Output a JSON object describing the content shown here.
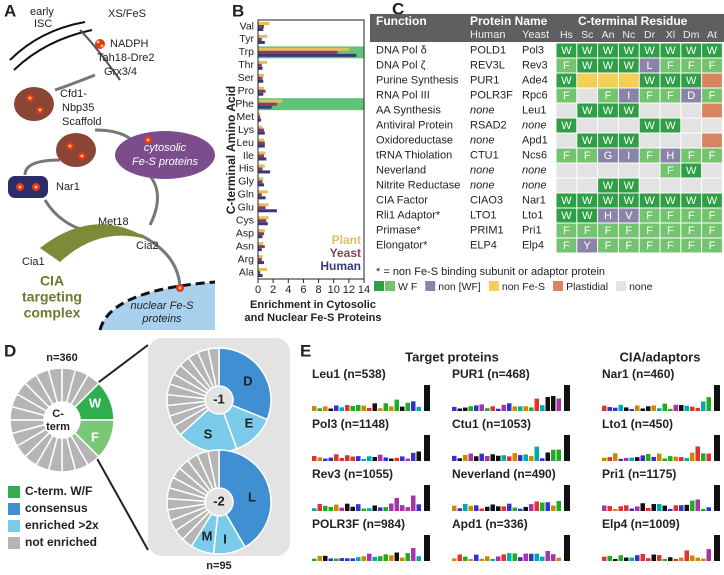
{
  "panel_labels": [
    "A",
    "B",
    "C",
    "D",
    "E"
  ],
  "diagram_a": {
    "early_isc": [
      "early",
      "ISC"
    ],
    "xs_fes": "XS/FeS",
    "nadph": "NADPH",
    "tah18": "Tah18-Dre2",
    "grx": "Grx3/4",
    "scaffold": [
      "Cfd1-",
      "Nbp35",
      "Scaffold"
    ],
    "nar1": "Nar1",
    "met18": "Met18",
    "cytosolic": [
      "cytosolic",
      "Fe-S proteins"
    ],
    "cia1": "Cia1",
    "cia2": "Cia2",
    "cia_complex": [
      "CIA",
      "targeting",
      "complex"
    ],
    "nuclear": [
      "nuclear Fe-S",
      "proteins"
    ]
  },
  "chart_data": {
    "type": "hbar",
    "ylabel": "C-terminal Amino Acid",
    "xlabel": [
      "Enrichment in Cytosolic",
      "and Nuclear Fe-S Proteins"
    ],
    "categories": [
      "Val",
      "Tyr",
      "Trp",
      "Thr",
      "Ser",
      "Pro",
      "Phe",
      "Met",
      "Lys",
      "Leu",
      "Ile",
      "His",
      "Gly",
      "Gln",
      "Glu",
      "Cys",
      "Asp",
      "Asn",
      "Arg",
      "Ala"
    ],
    "series": [
      {
        "name": "Plant",
        "color": "#e3bd63",
        "values": [
          1.5,
          1.2,
          12,
          1.2,
          0.8,
          0.8,
          3.2,
          0.3,
          0.6,
          0.8,
          1.0,
          0.9,
          0.7,
          1.3,
          1.4,
          1.4,
          0.9,
          0.7,
          0.6,
          1.2
        ]
      },
      {
        "name": "Yeast",
        "color": "#8a3f55",
        "values": [
          0.8,
          0.5,
          10.5,
          0.5,
          0.6,
          1.0,
          2.5,
          0.3,
          0.8,
          0.9,
          0.8,
          0.6,
          0.6,
          0.5,
          1.0,
          1.1,
          0.8,
          0.9,
          0.5,
          0.3
        ]
      },
      {
        "name": "Human",
        "color": "#39397a",
        "values": [
          0.7,
          0.9,
          13,
          0.6,
          0.7,
          0.7,
          1.8,
          0.4,
          0.9,
          0.9,
          1.1,
          1.6,
          0.8,
          1.0,
          2.5,
          1.3,
          0.6,
          0.5,
          0.8,
          0.6
        ]
      }
    ],
    "highlight": [
      "Trp",
      "Phe"
    ],
    "highlight_color": "#2fae4e",
    "xlim": [
      0,
      14
    ],
    "xticks": [
      0,
      2,
      4,
      6,
      8,
      10,
      12,
      14
    ],
    "legend": "lower right"
  },
  "table_c": {
    "header": {
      "function": "Function",
      "protein_name": "Protein Name",
      "c_terminal": "C-terminal Residue",
      "human": "Human",
      "yeast": "Yeast",
      "species": [
        "Hs",
        "Sc",
        "An",
        "Nc",
        "Dr",
        "Xl",
        "Dm",
        "At"
      ]
    },
    "class_colors": {
      "w": "#2f9f46",
      "f": "#74c36f",
      "nonwf": "#8a84a8",
      "nonfes": "#f3cf55",
      "plastidial": "#d98461",
      "none": "#e3e3e3"
    },
    "rows": [
      {
        "function": "DNA Pol δ",
        "human": "POLD1",
        "yeast": "Pol3",
        "cells": [
          {
            "residue": "W",
            "class": "w"
          },
          {
            "residue": "W",
            "class": "w"
          },
          {
            "residue": "W",
            "class": "w"
          },
          {
            "residue": "W",
            "class": "w"
          },
          {
            "residue": "W",
            "class": "w"
          },
          {
            "residue": "W",
            "class": "w"
          },
          {
            "residue": "W",
            "class": "w"
          },
          {
            "residue": "W",
            "class": "w"
          }
        ]
      },
      {
        "function": "DNA Pol ζ",
        "human": "REV3L",
        "yeast": "Rev3",
        "cells": [
          {
            "residue": "F",
            "class": "f"
          },
          {
            "residue": "W",
            "class": "w"
          },
          {
            "residue": "W",
            "class": "w"
          },
          {
            "residue": "W",
            "class": "w"
          },
          {
            "residue": "L",
            "class": "nonwf"
          },
          {
            "residue": "F",
            "class": "f"
          },
          {
            "residue": "F",
            "class": "f"
          },
          {
            "residue": "F",
            "class": "f"
          }
        ]
      },
      {
        "function": "Purine Synthesis",
        "human": "PUR1",
        "yeast": "Ade4",
        "cells": [
          {
            "residue": "W",
            "class": "w"
          },
          {
            "residue": null,
            "class": "nonfes"
          },
          {
            "residue": null,
            "class": "nonfes"
          },
          {
            "residue": null,
            "class": "nonfes"
          },
          {
            "residue": "W",
            "class": "w"
          },
          {
            "residue": "W",
            "class": "w"
          },
          {
            "residue": "W",
            "class": "w"
          },
          {
            "residue": null,
            "class": "plastidial"
          }
        ]
      },
      {
        "function": "RNA Pol III",
        "human": "POLR3F",
        "yeast": "Rpc6",
        "cells": [
          {
            "residue": "F",
            "class": "f"
          },
          {
            "residue": null,
            "class": "none"
          },
          {
            "residue": "F",
            "class": "f"
          },
          {
            "residue": "I",
            "class": "nonwf"
          },
          {
            "residue": "F",
            "class": "f"
          },
          {
            "residue": "F",
            "class": "f"
          },
          {
            "residue": "D",
            "class": "nonwf"
          },
          {
            "residue": "F",
            "class": "f"
          }
        ]
      },
      {
        "function": "AA Synthesis",
        "human": "none",
        "yeast": "Leu1",
        "cells": [
          {
            "residue": null,
            "class": "none"
          },
          {
            "residue": "W",
            "class": "w"
          },
          {
            "residue": "W",
            "class": "w"
          },
          {
            "residue": "W",
            "class": "w"
          },
          {
            "residue": null,
            "class": "none"
          },
          {
            "residue": null,
            "class": "none"
          },
          {
            "residue": null,
            "class": "none"
          },
          {
            "residue": null,
            "class": "plastidial"
          }
        ]
      },
      {
        "function": "Antiviral Protein",
        "human": "RSAD2",
        "yeast": "none",
        "cells": [
          {
            "residue": "W",
            "class": "w"
          },
          {
            "residue": null,
            "class": "none"
          },
          {
            "residue": null,
            "class": "none"
          },
          {
            "residue": null,
            "class": "none"
          },
          {
            "residue": "W",
            "class": "w"
          },
          {
            "residue": "W",
            "class": "w"
          },
          {
            "residue": null,
            "class": "none"
          },
          {
            "residue": null,
            "class": "none"
          }
        ]
      },
      {
        "function": "Oxidoreductase",
        "human": "none",
        "yeast": "Apd1",
        "cells": [
          {
            "residue": null,
            "class": "none"
          },
          {
            "residue": "W",
            "class": "w"
          },
          {
            "residue": "W",
            "class": "w"
          },
          {
            "residue": "W",
            "class": "w"
          },
          {
            "residue": null,
            "class": "none"
          },
          {
            "residue": null,
            "class": "none"
          },
          {
            "residue": null,
            "class": "none"
          },
          {
            "residue": null,
            "class": "plastidial"
          }
        ]
      },
      {
        "function": "tRNA Thiolation",
        "human": "CTU1",
        "yeast": "Ncs6",
        "cells": [
          {
            "residue": "F",
            "class": "f"
          },
          {
            "residue": "F",
            "class": "f"
          },
          {
            "residue": "G",
            "class": "nonwf"
          },
          {
            "residue": "I",
            "class": "nonwf"
          },
          {
            "residue": "F",
            "class": "f"
          },
          {
            "residue": "H",
            "class": "nonwf"
          },
          {
            "residue": "F",
            "class": "f"
          },
          {
            "residue": "F",
            "class": "f"
          }
        ]
      },
      {
        "function": "Neverland",
        "human": "none",
        "yeast": "none",
        "cells": [
          {
            "residue": null,
            "class": "none"
          },
          {
            "residue": null,
            "class": "none"
          },
          {
            "residue": null,
            "class": "none"
          },
          {
            "residue": null,
            "class": "none"
          },
          {
            "residue": null,
            "class": "none"
          },
          {
            "residue": "F",
            "class": "f"
          },
          {
            "residue": "W",
            "class": "w"
          },
          {
            "residue": null,
            "class": "none"
          }
        ]
      },
      {
        "function": "Nitrite Reductase",
        "human": "none",
        "yeast": "none",
        "cells": [
          {
            "residue": null,
            "class": "none"
          },
          {
            "residue": null,
            "class": "none"
          },
          {
            "residue": "W",
            "class": "w"
          },
          {
            "residue": "W",
            "class": "w"
          },
          {
            "residue": null,
            "class": "none"
          },
          {
            "residue": null,
            "class": "none"
          },
          {
            "residue": null,
            "class": "none"
          },
          {
            "residue": null,
            "class": "none"
          }
        ]
      },
      {
        "function": "CIA Factor",
        "human": "CIAO3",
        "yeast": "Nar1",
        "cells": [
          {
            "residue": "W",
            "class": "w"
          },
          {
            "residue": "W",
            "class": "w"
          },
          {
            "residue": "W",
            "class": "w"
          },
          {
            "residue": "W",
            "class": "w"
          },
          {
            "residue": "W",
            "class": "w"
          },
          {
            "residue": "W",
            "class": "w"
          },
          {
            "residue": "W",
            "class": "w"
          },
          {
            "residue": "W",
            "class": "w"
          }
        ]
      },
      {
        "function": "Rli1 Adaptor*",
        "human": "LTO1",
        "yeast": "Lto1",
        "cells": [
          {
            "residue": "W",
            "class": "w"
          },
          {
            "residue": "W",
            "class": "w"
          },
          {
            "residue": "H",
            "class": "nonwf"
          },
          {
            "residue": "V",
            "class": "nonwf"
          },
          {
            "residue": "F",
            "class": "f"
          },
          {
            "residue": "F",
            "class": "f"
          },
          {
            "residue": "F",
            "class": "f"
          },
          {
            "residue": "F",
            "class": "f"
          }
        ]
      },
      {
        "function": "Primase*",
        "human": "PRIM1",
        "yeast": "Pri1",
        "cells": [
          {
            "residue": "F",
            "class": "f"
          },
          {
            "residue": "F",
            "class": "f"
          },
          {
            "residue": "F",
            "class": "f"
          },
          {
            "residue": "F",
            "class": "f"
          },
          {
            "residue": "F",
            "class": "f"
          },
          {
            "residue": "F",
            "class": "f"
          },
          {
            "residue": "F",
            "class": "f"
          },
          {
            "residue": "F",
            "class": "f"
          }
        ]
      },
      {
        "function": "Elongator*",
        "human": "ELP4",
        "yeast": "Elp4",
        "cells": [
          {
            "residue": "F",
            "class": "f"
          },
          {
            "residue": "Y",
            "class": "nonwf"
          },
          {
            "residue": "F",
            "class": "f"
          },
          {
            "residue": "F",
            "class": "f"
          },
          {
            "residue": "F",
            "class": "f"
          },
          {
            "residue": "F",
            "class": "f"
          },
          {
            "residue": "F",
            "class": "f"
          },
          {
            "residue": "F",
            "class": "f"
          }
        ]
      }
    ],
    "footnote": "* = non Fe-S binding subunit or adaptor protein",
    "legend": [
      {
        "name": "W F",
        "classes": [
          "w",
          "f"
        ]
      },
      {
        "name": "non [WF]",
        "classes": [
          "nonwf"
        ]
      },
      {
        "name": "non Fe-S",
        "classes": [
          "nonfes"
        ]
      },
      {
        "name": "Plastidial",
        "classes": [
          "plastidial"
        ]
      },
      {
        "name": "none",
        "classes": [
          "none"
        ]
      }
    ]
  },
  "panel_d": {
    "n_all": "n=360",
    "center": [
      "C-",
      "term"
    ],
    "w": "W",
    "f": "F",
    "pos1": "-1",
    "pos1_letters": [
      "D",
      "E",
      "S"
    ],
    "pos2": "-2",
    "pos2_letters": [
      "L",
      "I",
      "M"
    ],
    "n_subset": "n=95",
    "legend": [
      {
        "name": "C-term. W/F",
        "color": "#2fae4e"
      },
      {
        "name": "consensus",
        "color": "#3f8fd2"
      },
      {
        "name": "enriched >2x",
        "color": "#79cbe9"
      },
      {
        "name": "not enriched",
        "color": "#b5b5b5"
      }
    ]
  },
  "panel_e": {
    "headers": [
      "Target proteins",
      "CIA/adaptors"
    ],
    "logos": [
      "Leu1 (n=538)",
      "PUR1 (n=468)",
      "Nar1 (n=460)",
      "Pol3 (n=1148)",
      "Ctu1 (n=1053)",
      "Lto1 (n=450)",
      "Rev3 (n=1055)",
      "Neverland (n=490)",
      "Pri1 (n=1175)",
      "POLR3F (n=984)",
      "Apd1 (n=336)",
      "Elp4 (n=1009)"
    ]
  }
}
